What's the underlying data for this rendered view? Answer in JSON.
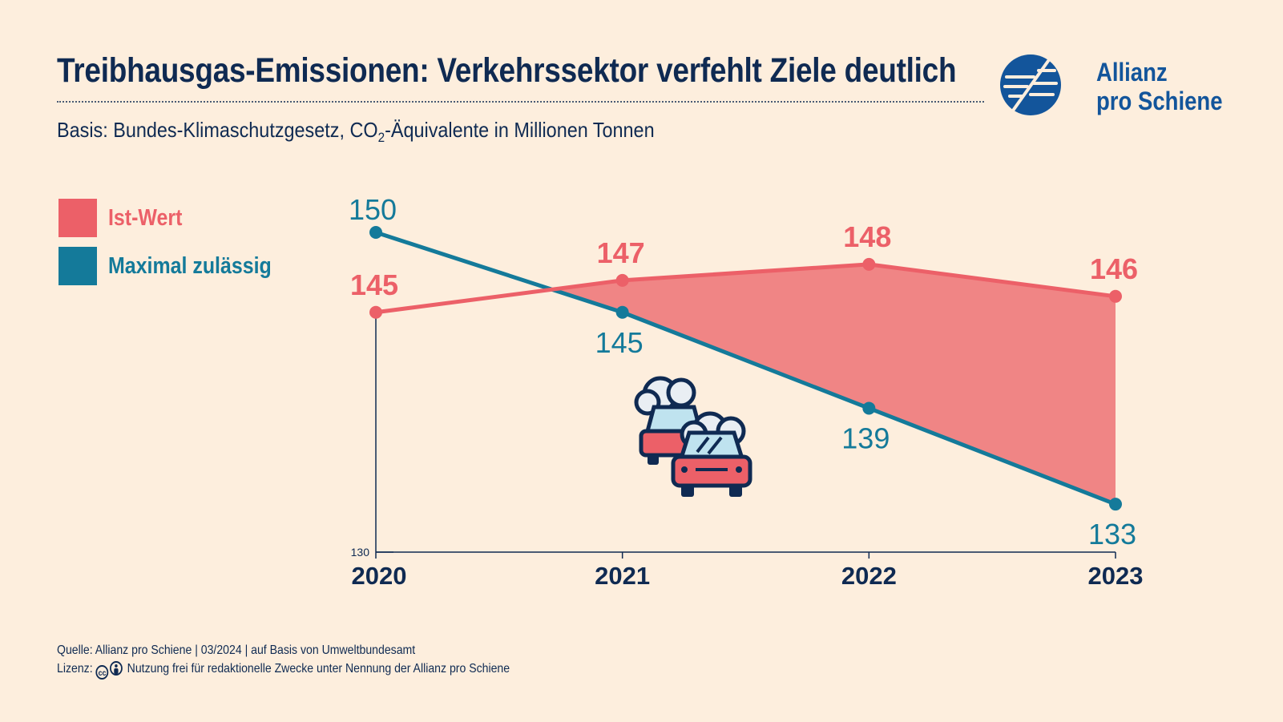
{
  "header": {
    "title": "Treibhausgas-Emissionen: Verkehrssektor verfehlt Ziele deutlich",
    "subtitle_pre": "Basis: Bundes-Klimaschutzgesetz, CO",
    "subtitle_sub": "2",
    "subtitle_post": "-Äquivalente in Millionen Tonnen"
  },
  "logo": {
    "line1": "Allianz",
    "line2": "pro Schiene",
    "icon": "allianz-pro-schiene-logo"
  },
  "legend": [
    {
      "label": "Ist-Wert",
      "color": "#ec6068"
    },
    {
      "label": "Maximal zulässig",
      "color": "#147a9a"
    }
  ],
  "chart_data": {
    "type": "line",
    "title": "Treibhausgas-Emissionen: Verkehrssektor verfehlt Ziele deutlich",
    "subtitle": "Basis: Bundes-Klimaschutzgesetz, CO2-Äquivalente in Millionen Tonnen",
    "x": [
      "2020",
      "2021",
      "2022",
      "2023"
    ],
    "series": [
      {
        "name": "Ist-Wert",
        "values": [
          145,
          147,
          148,
          146
        ],
        "color": "#ec6068"
      },
      {
        "name": "Maximal zulässig",
        "values": [
          150,
          145,
          139,
          133
        ],
        "color": "#147a9a"
      }
    ],
    "ylim": [
      130,
      152
    ],
    "yticks": [
      "130"
    ],
    "fill_between": "Ist-Wert above Maximal zulässig",
    "fill_color": "#f08585",
    "grid": false,
    "legend_position": "left"
  },
  "illustration": {
    "icon": "cars-exhaust-icon"
  },
  "footer": {
    "source": "Quelle: Allianz pro Schiene | 03/2024 | auf Basis von Umweltbundesamt",
    "license_label": "Lizenz:",
    "license_text": "Nutzung frei für redaktionelle Zwecke unter Nennung der Allianz pro Schiene",
    "cc_text": "cc"
  }
}
